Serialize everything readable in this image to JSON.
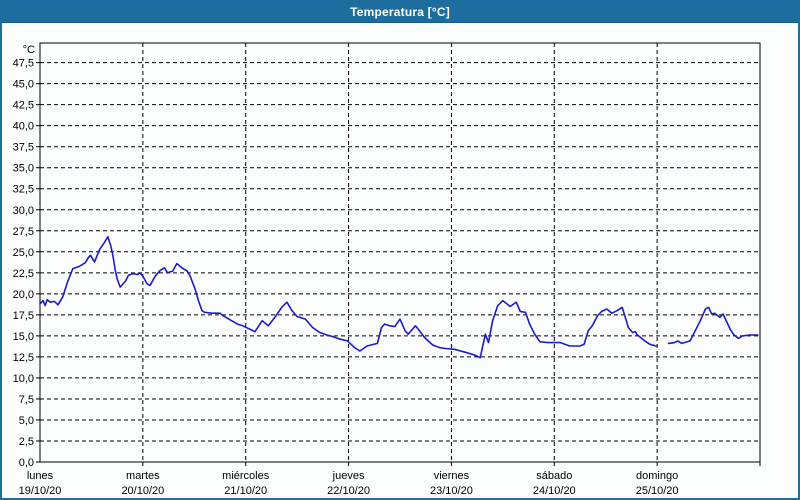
{
  "colors": {
    "accent": "#1d6e9e",
    "accent_dark": "#155a85",
    "line": "#1c1cc8",
    "grid": "#000000",
    "background": "#fcfdfd",
    "title_text": "#ffffff"
  },
  "chart_data": {
    "type": "line",
    "title": "Temperatura [°C]",
    "legend": "none",
    "grid": "dashed",
    "y_axis": {
      "unit_label": "°C",
      "range": [
        0,
        49.8
      ],
      "tick_values": [
        0,
        2.5,
        5,
        7.5,
        10,
        12.5,
        15,
        17.5,
        20,
        22.5,
        25,
        27.5,
        30,
        32.5,
        35,
        37.5,
        40,
        42.5,
        45,
        47.5
      ],
      "tick_labels": [
        "0,0",
        "2,5",
        "5,0",
        "7,5",
        "10,0",
        "12,5",
        "15,0",
        "17,5",
        "20,0",
        "22,5",
        "25,0",
        "27,5",
        "30,0",
        "32,5",
        "35,0",
        "37,5",
        "40,0",
        "42,5",
        "45,0",
        "47,5"
      ]
    },
    "x_axis": {
      "range_days": [
        0,
        7
      ],
      "days": [
        {
          "name": "lunes",
          "date": "19/10/20"
        },
        {
          "name": "martes",
          "date": "20/10/20"
        },
        {
          "name": "miércoles",
          "date": "21/10/20"
        },
        {
          "name": "jueves",
          "date": "22/10/20"
        },
        {
          "name": "viernes",
          "date": "23/10/20"
        },
        {
          "name": "sábado",
          "date": "24/10/20"
        },
        {
          "name": "domingo",
          "date": "25/10/20"
        }
      ]
    },
    "series": [
      {
        "name": "Temperatura",
        "color": "#1c1cc8",
        "segments": [
          [
            [
              0.0,
              18.8
            ],
            [
              0.03,
              19.2
            ],
            [
              0.05,
              18.6
            ],
            [
              0.07,
              19.3
            ],
            [
              0.1,
              19.0
            ],
            [
              0.14,
              19.1
            ],
            [
              0.175,
              18.7
            ],
            [
              0.22,
              19.6
            ],
            [
              0.27,
              21.5
            ],
            [
              0.32,
              23.0
            ],
            [
              0.37,
              23.2
            ],
            [
              0.4,
              23.4
            ],
            [
              0.44,
              23.7
            ],
            [
              0.47,
              24.3
            ],
            [
              0.49,
              24.6
            ],
            [
              0.53,
              23.8
            ],
            [
              0.58,
              25.3
            ],
            [
              0.62,
              26.0
            ],
            [
              0.66,
              26.8
            ],
            [
              0.69,
              25.6
            ],
            [
              0.71,
              24.5
            ],
            [
              0.73,
              22.9
            ],
            [
              0.75,
              21.8
            ],
            [
              0.78,
              20.8
            ],
            [
              0.83,
              21.5
            ],
            [
              0.86,
              22.2
            ],
            [
              0.9,
              22.4
            ],
            [
              0.95,
              22.3
            ],
            [
              0.97,
              22.5
            ],
            [
              1.0,
              22.1
            ],
            [
              1.04,
              21.2
            ],
            [
              1.07,
              21.0
            ],
            [
              1.12,
              22.1
            ],
            [
              1.17,
              22.8
            ],
            [
              1.21,
              23.1
            ],
            [
              1.24,
              22.5
            ],
            [
              1.29,
              22.7
            ],
            [
              1.33,
              23.6
            ],
            [
              1.38,
              23.1
            ],
            [
              1.43,
              22.7
            ],
            [
              1.46,
              22.1
            ],
            [
              1.51,
              20.5
            ],
            [
              1.54,
              19.2
            ],
            [
              1.575,
              18.0
            ],
            [
              1.6,
              17.8
            ],
            [
              1.67,
              17.7
            ],
            [
              1.75,
              17.7
            ],
            [
              1.78,
              17.4
            ],
            [
              1.85,
              16.9
            ],
            [
              1.92,
              16.4
            ],
            [
              1.97,
              16.2
            ],
            [
              2.04,
              15.8
            ],
            [
              2.09,
              15.5
            ],
            [
              2.16,
              16.8
            ],
            [
              2.22,
              16.2
            ],
            [
              2.29,
              17.3
            ],
            [
              2.35,
              18.4
            ],
            [
              2.4,
              19.0
            ],
            [
              2.45,
              18.0
            ],
            [
              2.5,
              17.3
            ],
            [
              2.58,
              17.0
            ],
            [
              2.65,
              16.0
            ],
            [
              2.72,
              15.4
            ],
            [
              2.79,
              15.1
            ],
            [
              2.85,
              14.9
            ],
            [
              2.92,
              14.6
            ],
            [
              2.99,
              14.4
            ],
            [
              3.06,
              13.6
            ],
            [
              3.11,
              13.2
            ],
            [
              3.18,
              13.8
            ],
            [
              3.28,
              14.1
            ],
            [
              3.32,
              16.0
            ],
            [
              3.35,
              16.4
            ],
            [
              3.4,
              16.2
            ],
            [
              3.45,
              16.1
            ],
            [
              3.5,
              17.0
            ],
            [
              3.55,
              15.6
            ],
            [
              3.58,
              15.2
            ],
            [
              3.65,
              16.2
            ],
            [
              3.67,
              15.9
            ],
            [
              3.74,
              14.8
            ],
            [
              3.82,
              13.9
            ],
            [
              3.89,
              13.6
            ],
            [
              3.94,
              13.5
            ],
            [
              4.03,
              13.4
            ],
            [
              4.15,
              13.0
            ],
            [
              4.23,
              12.7
            ],
            [
              4.28,
              12.4
            ],
            [
              4.33,
              15.2
            ],
            [
              4.36,
              14.2
            ],
            [
              4.4,
              16.8
            ],
            [
              4.45,
              18.6
            ],
            [
              4.5,
              19.2
            ],
            [
              4.57,
              18.5
            ],
            [
              4.63,
              19.0
            ],
            [
              4.67,
              17.9
            ],
            [
              4.72,
              17.8
            ],
            [
              4.76,
              16.4
            ],
            [
              4.81,
              15.2
            ],
            [
              4.86,
              14.3
            ],
            [
              4.94,
              14.2
            ],
            [
              5.06,
              14.2
            ],
            [
              5.15,
              13.8
            ],
            [
              5.25,
              13.8
            ],
            [
              5.29,
              14.0
            ],
            [
              5.33,
              15.6
            ],
            [
              5.37,
              16.2
            ],
            [
              5.42,
              17.4
            ],
            [
              5.46,
              17.9
            ],
            [
              5.51,
              18.2
            ],
            [
              5.56,
              17.7
            ],
            [
              5.61,
              18.0
            ],
            [
              5.66,
              18.4
            ],
            [
              5.69,
              17.2
            ],
            [
              5.72,
              16.0
            ],
            [
              5.76,
              15.4
            ],
            [
              5.79,
              15.5
            ],
            [
              5.8,
              15.2
            ],
            [
              5.83,
              14.9
            ],
            [
              5.88,
              14.4
            ],
            [
              5.93,
              14.0
            ],
            [
              5.99,
              13.8
            ]
          ],
          [
            [
              6.11,
              14.1
            ],
            [
              6.17,
              14.2
            ],
            [
              6.2,
              14.4
            ],
            [
              6.24,
              14.1
            ],
            [
              6.32,
              14.4
            ],
            [
              6.37,
              15.6
            ],
            [
              6.42,
              16.8
            ],
            [
              6.47,
              18.2
            ],
            [
              6.5,
              18.4
            ],
            [
              6.53,
              17.6
            ],
            [
              6.56,
              17.7
            ],
            [
              6.61,
              17.2
            ],
            [
              6.64,
              17.6
            ],
            [
              6.71,
              15.8
            ],
            [
              6.74,
              15.2
            ],
            [
              6.79,
              14.7
            ],
            [
              6.83,
              15.0
            ],
            [
              6.9,
              15.1
            ],
            [
              6.98,
              15.1
            ]
          ]
        ]
      }
    ]
  }
}
